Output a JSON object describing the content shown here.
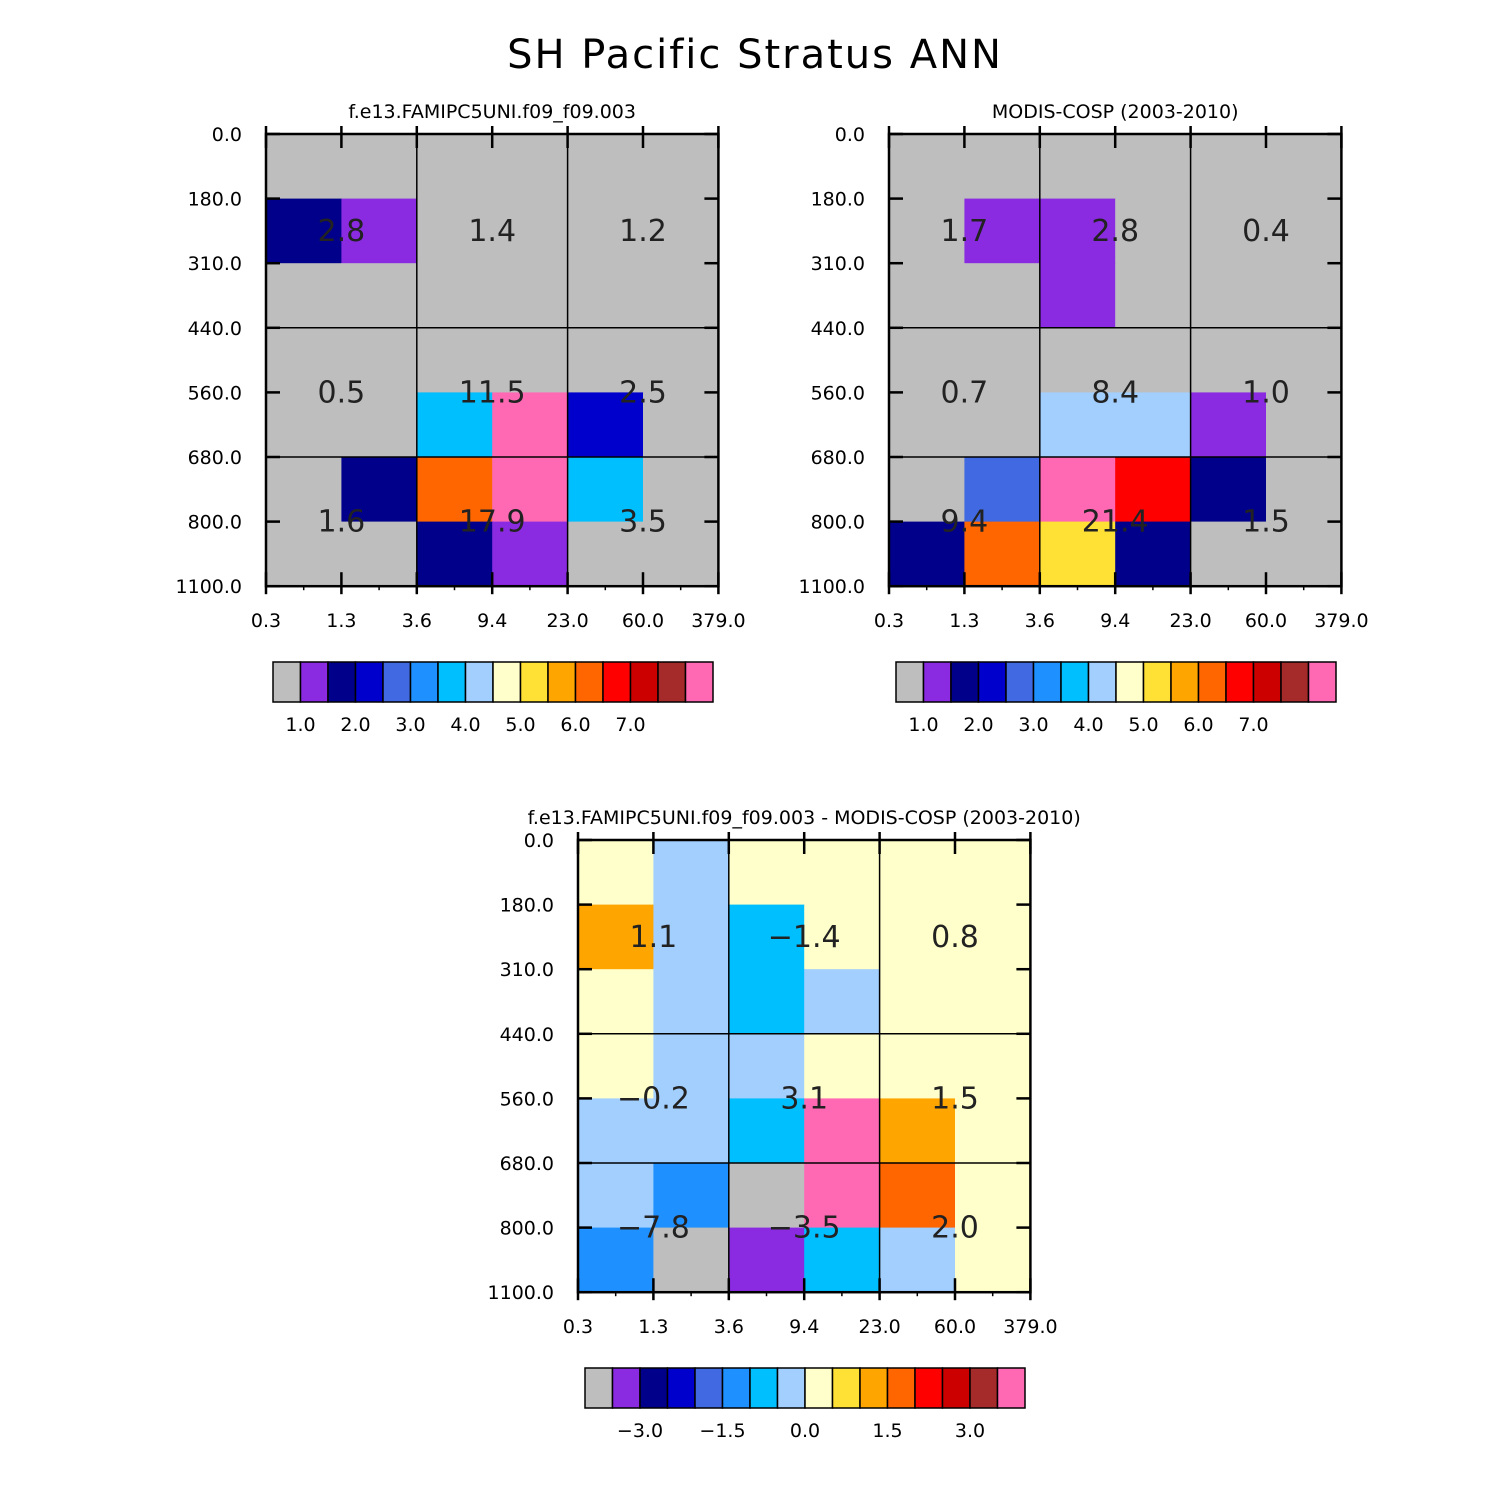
{
  "figure_title": "SH Pacific Stratus ANN",
  "palette": [
    "#bebebe",
    "#8a2be2",
    "#00008b",
    "#0000cd",
    "#4169e1",
    "#1e90ff",
    "#00bfff",
    "#a2cffe",
    "#ffffcc",
    "#ffe135",
    "#ffa500",
    "#ff6600",
    "#ff0000",
    "#cd0000",
    "#a52a2a",
    "#ff69b4"
  ],
  "chart_data": [
    {
      "type": "heatmap",
      "title": "f.e13.FAMIPC5UNI.f09_f09.003",
      "x_ticks": [
        "0.3",
        "1.3",
        "3.6",
        "9.4",
        "23.0",
        "60.0",
        "379.0"
      ],
      "y_ticks": [
        "0.0",
        "180.0",
        "310.0",
        "440.0",
        "560.0",
        "680.0",
        "800.0",
        "1100.0"
      ],
      "cells": [
        [
          0,
          0,
          0,
          0,
          0,
          0
        ],
        [
          2,
          1,
          0,
          0,
          0,
          0
        ],
        [
          0,
          0,
          0,
          0,
          0,
          0
        ],
        [
          0,
          0,
          0,
          0,
          0,
          0
        ],
        [
          0,
          0,
          6,
          15,
          3,
          0
        ],
        [
          0,
          2,
          11,
          15,
          6,
          0
        ],
        [
          0,
          0,
          2,
          1,
          0,
          0
        ]
      ],
      "box_labels": [
        [
          "2.8",
          "1.4",
          "1.2"
        ],
        [
          "0.5",
          "11.5",
          "2.5"
        ],
        [
          "1.6",
          "17.9",
          "3.5"
        ]
      ],
      "colorbar_labels": [
        "1.0",
        "2.0",
        "3.0",
        "4.0",
        "5.0",
        "6.0",
        "7.0"
      ]
    },
    {
      "type": "heatmap",
      "title": "MODIS-COSP (2003-2010)",
      "x_ticks": [
        "0.3",
        "1.3",
        "3.6",
        "9.4",
        "23.0",
        "60.0",
        "379.0"
      ],
      "y_ticks": [
        "0.0",
        "180.0",
        "310.0",
        "440.0",
        "560.0",
        "680.0",
        "800.0",
        "1100.0"
      ],
      "cells": [
        [
          0,
          0,
          0,
          0,
          0,
          0
        ],
        [
          0,
          1,
          1,
          0,
          0,
          0
        ],
        [
          0,
          0,
          1,
          0,
          0,
          0
        ],
        [
          0,
          0,
          0,
          0,
          0,
          0
        ],
        [
          0,
          0,
          7,
          7,
          1,
          0
        ],
        [
          0,
          4,
          15,
          12,
          2,
          0
        ],
        [
          2,
          11,
          9,
          2,
          0,
          0
        ]
      ],
      "box_labels": [
        [
          "1.7",
          "2.8",
          "0.4"
        ],
        [
          "0.7",
          "8.4",
          "1.0"
        ],
        [
          "9.4",
          "21.4",
          "1.5"
        ]
      ],
      "colorbar_labels": [
        "1.0",
        "2.0",
        "3.0",
        "4.0",
        "5.0",
        "6.0",
        "7.0"
      ]
    },
    {
      "type": "heatmap",
      "title": "f.e13.FAMIPC5UNI.f09_f09.003 - MODIS-COSP (2003-2010)",
      "x_ticks": [
        "0.3",
        "1.3",
        "3.6",
        "9.4",
        "23.0",
        "60.0",
        "379.0"
      ],
      "y_ticks": [
        "0.0",
        "180.0",
        "310.0",
        "440.0",
        "560.0",
        "680.0",
        "800.0",
        "1100.0"
      ],
      "cells": [
        [
          8,
          7,
          8,
          8,
          8,
          8
        ],
        [
          10,
          7,
          6,
          8,
          8,
          8
        ],
        [
          8,
          7,
          6,
          7,
          8,
          8
        ],
        [
          8,
          7,
          7,
          8,
          8,
          8
        ],
        [
          7,
          7,
          6,
          15,
          10,
          8
        ],
        [
          7,
          5,
          0,
          15,
          11,
          8
        ],
        [
          5,
          0,
          1,
          6,
          7,
          8
        ]
      ],
      "box_labels": [
        [
          "1.1",
          "-1.4",
          "0.8"
        ],
        [
          "-0.2",
          "3.1",
          "1.5"
        ],
        [
          "-7.8",
          "-3.5",
          "2.0"
        ]
      ],
      "colorbar_labels": [
        "-3.0",
        "-1.5",
        "0.0",
        "1.5",
        "3.0"
      ]
    }
  ]
}
